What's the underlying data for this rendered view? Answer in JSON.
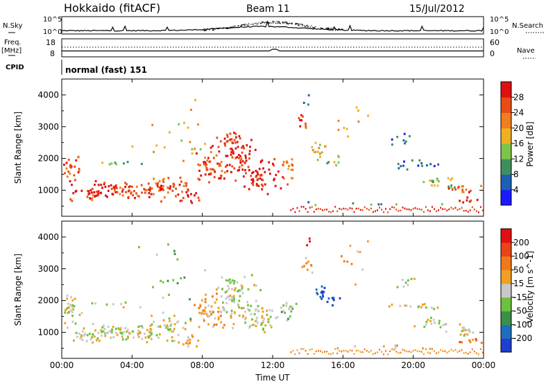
{
  "header": {
    "station": "Hokkaido (fitACF)",
    "beam": "Beam 11",
    "date": "15/Jul/2012"
  },
  "params": {
    "nsky_label": "N.Sky",
    "nsearch_label": "N.Search",
    "freq_label_1": "Freq.",
    "freq_label_2": "[MHz]",
    "nave_label": "Nave",
    "cpid_label": "CPID",
    "cpid_value": "normal (fast) 151",
    "noise_ticks_left": [
      "10^5",
      "10^0"
    ],
    "noise_ticks_right": [
      "10^5",
      "10^0"
    ],
    "freq_ticks": [
      "18",
      "8"
    ],
    "nave_ticks": [
      "60",
      "0"
    ]
  },
  "colors": {
    "power": [
      "#1a1aff",
      "#1d5fb5",
      "#3f8f5e",
      "#7fc44a",
      "#f0b023",
      "#f07d1e",
      "#e84c14",
      "#e01010"
    ],
    "velocity": [
      "#1e3fd0",
      "#1f6dbf",
      "#3a8f4a",
      "#6cc23d",
      "#c8c8c8",
      "#f0a020",
      "#f07818",
      "#e84414",
      "#e01010"
    ]
  },
  "chart_data": [
    {
      "type": "heatmap",
      "title": "Power",
      "ylabel": "Slant Range [km]",
      "xlabel": "",
      "x_ticks": [
        "00:00",
        "04:00",
        "08:00",
        "12:00",
        "16:00",
        "20:00",
        "00:00"
      ],
      "y_ticks": [
        "1000",
        "2000",
        "3000",
        "4000"
      ],
      "ylim": [
        180,
        4500
      ],
      "xlim_hours": [
        0,
        24
      ],
      "colorbar": {
        "label": "Power [dB]",
        "ticks": [
          "4",
          "8",
          "12",
          "16",
          "20",
          "24",
          "28"
        ],
        "range": [
          0,
          32
        ]
      }
    },
    {
      "type": "heatmap",
      "title": "Velocity",
      "ylabel": "Slant Range [km]",
      "xlabel": "Time UT",
      "x_ticks": [
        "00:00",
        "04:00",
        "08:00",
        "12:00",
        "16:00",
        "20:00",
        "00:00"
      ],
      "y_ticks": [
        "1000",
        "2000",
        "3000",
        "4000"
      ],
      "ylim": [
        180,
        4500
      ],
      "xlim_hours": [
        0,
        24
      ],
      "colorbar": {
        "label": "Velocity [m s^-1]",
        "ticks": [
          "200",
          "100",
          "50",
          "15",
          "-15",
          "-50",
          "-100",
          "-200"
        ]
      }
    }
  ]
}
